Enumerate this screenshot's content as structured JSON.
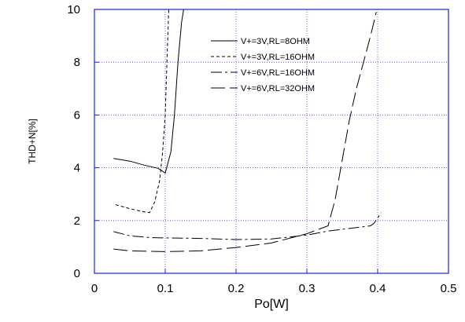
{
  "chart_data": {
    "type": "line",
    "xlabel": "Po[W]",
    "ylabel": "THD+N[%]",
    "xlim": [
      0,
      0.5
    ],
    "ylim": [
      0,
      10
    ],
    "xticks": [
      "0",
      "0.1",
      "0.2",
      "0.3",
      "0.4",
      "0.5"
    ],
    "yticks": [
      "0",
      "2",
      "4",
      "6",
      "8",
      "10"
    ],
    "grid": true,
    "legend_position": "top-right",
    "series": [
      {
        "name": "V+=3V,RL=8OHM",
        "dash": "",
        "points": [
          [
            0.027,
            4.35
          ],
          [
            0.05,
            4.25
          ],
          [
            0.07,
            4.1
          ],
          [
            0.09,
            3.98
          ],
          [
            0.1,
            3.8
          ],
          [
            0.108,
            4.6
          ],
          [
            0.113,
            6.0
          ],
          [
            0.118,
            8.0
          ],
          [
            0.123,
            9.5
          ],
          [
            0.126,
            10.0
          ]
        ]
      },
      {
        "name": "V+=3V,RL=16OHM",
        "dash": "4,3",
        "points": [
          [
            0.03,
            2.6
          ],
          [
            0.05,
            2.45
          ],
          [
            0.07,
            2.33
          ],
          [
            0.078,
            2.3
          ],
          [
            0.085,
            2.7
          ],
          [
            0.092,
            3.5
          ],
          [
            0.096,
            4.5
          ],
          [
            0.1,
            6.0
          ],
          [
            0.103,
            8.5
          ],
          [
            0.105,
            10.0
          ]
        ]
      },
      {
        "name": "V+=6V,RL=16OHM",
        "dash": "14,4,3,4",
        "points": [
          [
            0.027,
            1.58
          ],
          [
            0.05,
            1.42
          ],
          [
            0.08,
            1.35
          ],
          [
            0.15,
            1.32
          ],
          [
            0.2,
            1.28
          ],
          [
            0.25,
            1.3
          ],
          [
            0.3,
            1.45
          ],
          [
            0.33,
            1.6
          ],
          [
            0.36,
            1.7
          ],
          [
            0.39,
            1.8
          ],
          [
            0.395,
            1.9
          ],
          [
            0.4,
            2.1
          ],
          [
            0.405,
            2.3
          ]
        ]
      },
      {
        "name": "V+=6V,RL=32OHM",
        "dash": "18,6",
        "points": [
          [
            0.027,
            0.92
          ],
          [
            0.05,
            0.85
          ],
          [
            0.1,
            0.82
          ],
          [
            0.15,
            0.85
          ],
          [
            0.2,
            0.98
          ],
          [
            0.25,
            1.15
          ],
          [
            0.3,
            1.5
          ],
          [
            0.33,
            1.8
          ],
          [
            0.34,
            2.8
          ],
          [
            0.35,
            4.3
          ],
          [
            0.36,
            5.8
          ],
          [
            0.37,
            7.0
          ],
          [
            0.38,
            8.0
          ],
          [
            0.39,
            9.0
          ],
          [
            0.398,
            9.9
          ]
        ]
      }
    ]
  }
}
